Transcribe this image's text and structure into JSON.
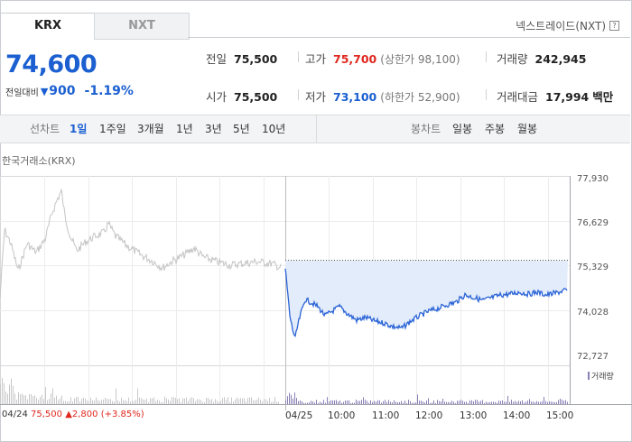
{
  "tabs": [
    {
      "label": "KRX",
      "selected": true
    },
    {
      "label": "NXT",
      "selected": false
    }
  ],
  "nextrade_link": "넥스트레이드(NXT)",
  "help_icon": "?",
  "price": {
    "current": "74,600",
    "change_label": "전일대비",
    "change": "900",
    "change_pct": "-1.19%",
    "direction": "down"
  },
  "stats": {
    "prev_close": {
      "label": "전일",
      "value": "75,500"
    },
    "open": {
      "label": "시가",
      "value": "75,500"
    },
    "high": {
      "label": "고가",
      "value": "75,700",
      "sub": "(상한가 98,100)"
    },
    "low": {
      "label": "저가",
      "value": "73,100",
      "sub": "(하한가 52,900)"
    },
    "volume": {
      "label": "거래량",
      "value": "242,945"
    },
    "amount": {
      "label": "거래대금",
      "value": "17,994",
      "unit": "백만"
    }
  },
  "period_bar": {
    "line_label": "선차트",
    "line_periods": [
      "1일",
      "1주일",
      "3개월",
      "1년",
      "3년",
      "5년",
      "10년"
    ],
    "selected": "1일",
    "candle_label": "봉차트",
    "candle_periods": [
      "일봉",
      "주봉",
      "월봉"
    ]
  },
  "chart": {
    "title": "한국거래소(KRX)",
    "y_ticks": [
      "77,930",
      "76,629",
      "75,329",
      "74,028",
      "72,727"
    ],
    "x_ticks": [
      "04/25",
      "10:00",
      "11:00",
      "12:00",
      "13:00",
      "14:00",
      "15:00"
    ],
    "prev_day_date": "04/24",
    "prev_day_close": "75,500",
    "prev_day_change": "▲2,800",
    "prev_day_pct": "(+3.85%)",
    "volume_legend": "거래량",
    "colors": {
      "line": "#2a64d6",
      "fill": "#e3ecfa",
      "prev_line": "#c4c4c4",
      "volume": "#8a7fb7"
    }
  }
}
